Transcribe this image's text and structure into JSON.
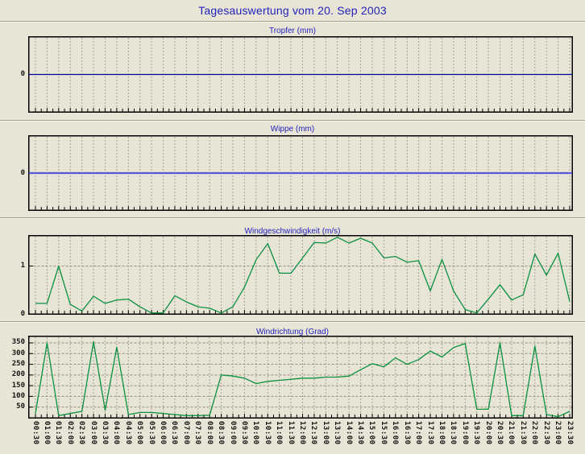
{
  "header": {
    "title": "Tagesauswertung vom 20. Sep 2003"
  },
  "x_labels": [
    "00:30",
    "01:00",
    "01:30",
    "02:00",
    "02:30",
    "03:00",
    "03:30",
    "04:00",
    "04:30",
    "05:00",
    "05:30",
    "06:00",
    "06:30",
    "07:00",
    "07:30",
    "08:00",
    "08:30",
    "09:00",
    "09:30",
    "10:00",
    "10:30",
    "11:00",
    "11:30",
    "12:00",
    "12:30",
    "13:00",
    "13:30",
    "14:00",
    "14:30",
    "15:00",
    "15:30",
    "16:00",
    "16:30",
    "17:00",
    "17:30",
    "18:00",
    "18:30",
    "19:00",
    "19:30",
    "20:00",
    "20:30",
    "21:00",
    "21:30",
    "22:00",
    "22:30",
    "23:00",
    "23:30"
  ],
  "chart_data": [
    {
      "type": "line",
      "title": "Tropfer (mm)",
      "categories": "see x_labels",
      "values": [
        0,
        0,
        0,
        0,
        0,
        0,
        0,
        0,
        0,
        0,
        0,
        0,
        0,
        0,
        0,
        0,
        0,
        0,
        0,
        0,
        0,
        0,
        0,
        0,
        0,
        0,
        0,
        0,
        0,
        0,
        0,
        0,
        0,
        0,
        0,
        0,
        0,
        0,
        0,
        0,
        0,
        0,
        0,
        0,
        0,
        0,
        0
      ],
      "ylim": [
        -1,
        1
      ],
      "yticks": [
        0
      ],
      "hgrid": [],
      "line_color": "#00009a",
      "line_width": 1.2,
      "extend_line": true,
      "grid": "vertical-dashed-every-30min",
      "legend_position": "none"
    },
    {
      "type": "line",
      "title": "Wippe (mm)",
      "categories": "see x_labels",
      "values": [
        0,
        0,
        0,
        0,
        0,
        0,
        0,
        0,
        0,
        0,
        0,
        0,
        0,
        0,
        0,
        0,
        0,
        0,
        0,
        0,
        0,
        0,
        0,
        0,
        0,
        0,
        0,
        0,
        0,
        0,
        0,
        0,
        0,
        0,
        0,
        0,
        0,
        0,
        0,
        0,
        0,
        0,
        0,
        0,
        0,
        0,
        0
      ],
      "ylim": [
        -1,
        1
      ],
      "yticks": [
        0
      ],
      "hgrid": [],
      "line_color": "#5b57dd",
      "line_width": 2.2,
      "extend_line": true,
      "grid": "vertical-dashed-every-30min",
      "legend_position": "none"
    },
    {
      "type": "line",
      "title": "Windgeschwindigkeit (m/s)",
      "categories": "see x_labels",
      "values": [
        0.22,
        0.22,
        1.0,
        0.2,
        0.06,
        0.37,
        0.22,
        0.29,
        0.31,
        0.15,
        0.02,
        0.02,
        0.38,
        0.25,
        0.15,
        0.12,
        0.02,
        0.15,
        0.56,
        1.13,
        1.47,
        0.85,
        0.85,
        1.17,
        1.49,
        1.48,
        1.6,
        1.48,
        1.58,
        1.48,
        1.17,
        1.2,
        1.08,
        1.11,
        0.48,
        1.14,
        0.48,
        0.09,
        0.02,
        0.31,
        0.61,
        0.29,
        0.4,
        1.25,
        0.81,
        1.27,
        0.26
      ],
      "ylim": [
        0,
        1.63
      ],
      "yticks": [
        0,
        1
      ],
      "hgrid": [
        1
      ],
      "line_color": "#0a9141",
      "line_width": 1.3,
      "extend_line": false,
      "grid": "vertical-dashed-every-30min",
      "legend_position": "none"
    },
    {
      "type": "line",
      "title": "Windrichtung (Grad)",
      "categories": "see x_labels",
      "values": [
        20,
        350,
        10,
        20,
        30,
        355,
        35,
        330,
        15,
        25,
        25,
        20,
        15,
        10,
        10,
        12,
        200,
        195,
        185,
        160,
        170,
        175,
        180,
        185,
        185,
        190,
        190,
        195,
        225,
        253,
        238,
        280,
        250,
        272,
        312,
        284,
        328,
        347,
        40,
        40,
        350,
        10,
        10,
        335,
        15,
        5,
        30
      ],
      "ylim": [
        0,
        380
      ],
      "yticks": [
        50,
        100,
        150,
        200,
        250,
        300,
        350
      ],
      "hgrid": [
        50,
        100,
        150,
        200,
        250,
        300,
        350
      ],
      "line_color": "#0a9141",
      "line_width": 1.3,
      "extend_line": false,
      "grid": "vertical-dashed-every-30min",
      "legend_position": "none"
    }
  ]
}
